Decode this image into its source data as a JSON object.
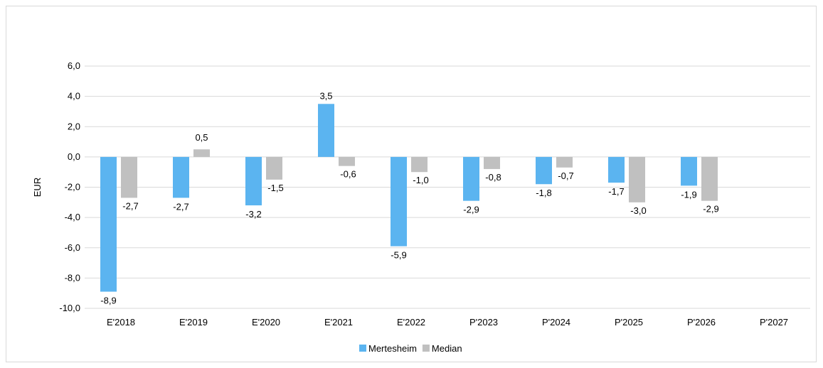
{
  "chart_data": {
    "type": "bar",
    "title": "",
    "xlabel": "",
    "ylabel": "EUR",
    "ylim": [
      -10,
      6
    ],
    "ytick_step": 2,
    "ytick_labels": [
      "-10,0",
      "-8,0",
      "-6,0",
      "-4,0",
      "-2,0",
      "0,0",
      "2,0",
      "4,0",
      "6,0"
    ],
    "grid": true,
    "legend_position": "bottom",
    "categories": [
      "E'2018",
      "E'2019",
      "E'2020",
      "E'2021",
      "E'2022",
      "P'2023",
      "P'2024",
      "P'2025",
      "P'2026",
      "P'2027"
    ],
    "series": [
      {
        "name": "Mertesheim",
        "color": "#5bb4f0",
        "values": [
          -8.9,
          -2.7,
          -3.2,
          3.5,
          -5.9,
          -2.9,
          -1.8,
          -1.7,
          -1.9,
          null
        ],
        "labels": [
          "-8,9",
          "-2,7",
          "-3,2",
          "3,5",
          "-5,9",
          "-2,9",
          "-1,8",
          "-1,7",
          "-1,9",
          null
        ]
      },
      {
        "name": "Median",
        "color": "#c0c0c0",
        "values": [
          -2.7,
          0.5,
          -1.5,
          -0.6,
          -1.0,
          -0.8,
          -0.7,
          -3.0,
          -2.9,
          null
        ],
        "labels": [
          "-2,7",
          "0,5",
          "-1,5",
          "-0,6",
          "-1,0",
          "-0,8",
          "-0,7",
          "-3,0",
          "-2,9",
          null
        ]
      }
    ]
  }
}
